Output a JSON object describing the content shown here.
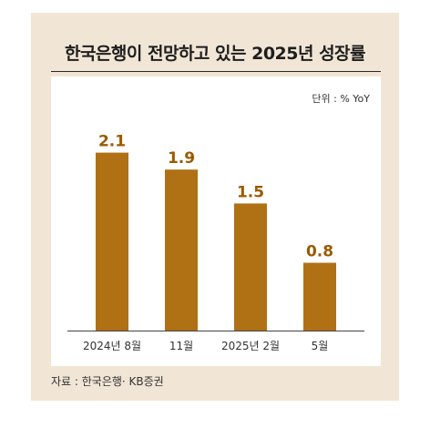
{
  "title": "한국은행이 전망하고 있는 2025년 성장률",
  "unit_label": "단위 : % YoY",
  "source": "자료 : 한국은행· KB증권",
  "colors": {
    "bar": "#b07014",
    "label": "#9a5a00",
    "background": "#f1e6d6"
  },
  "chart_data": {
    "type": "bar",
    "categories": [
      "2024년 8월",
      "11월",
      "2025년 2월",
      "5월"
    ],
    "values": [
      2.1,
      1.9,
      1.5,
      0.8
    ],
    "ylim": [
      0,
      2.3
    ],
    "grid": false,
    "legend": "none"
  }
}
